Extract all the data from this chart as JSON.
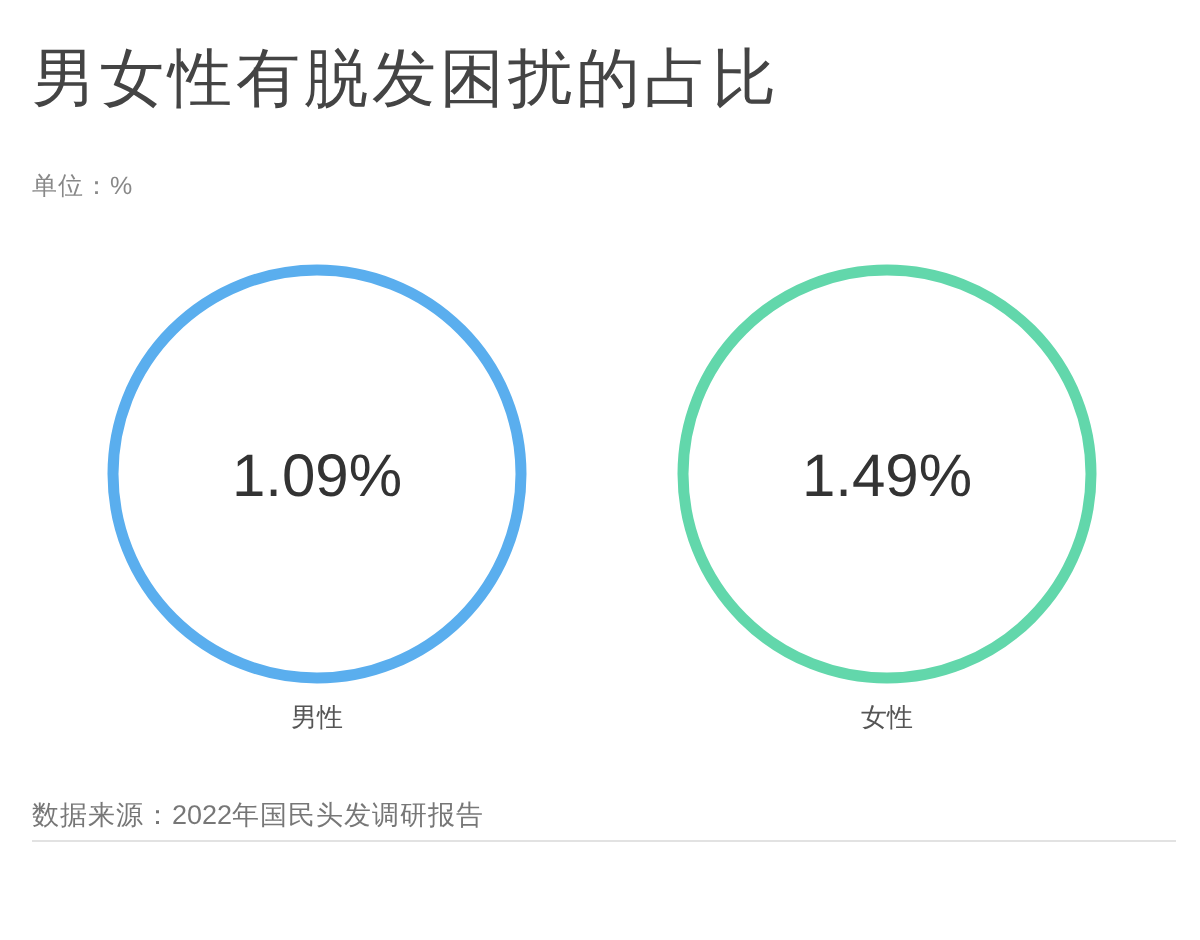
{
  "chart_data": {
    "type": "other",
    "title": "男女性有脱发困扰的占比",
    "subtitle": "单位：%",
    "categories": [
      "男性",
      "女性"
    ],
    "values": [
      1.09,
      1.49
    ],
    "value_labels": [
      "1.09%",
      "1.49%"
    ],
    "colors": [
      "#5aaeee",
      "#62d7ab"
    ],
    "annotations": [
      "数据来源：2022年国民头发调研报告"
    ]
  }
}
